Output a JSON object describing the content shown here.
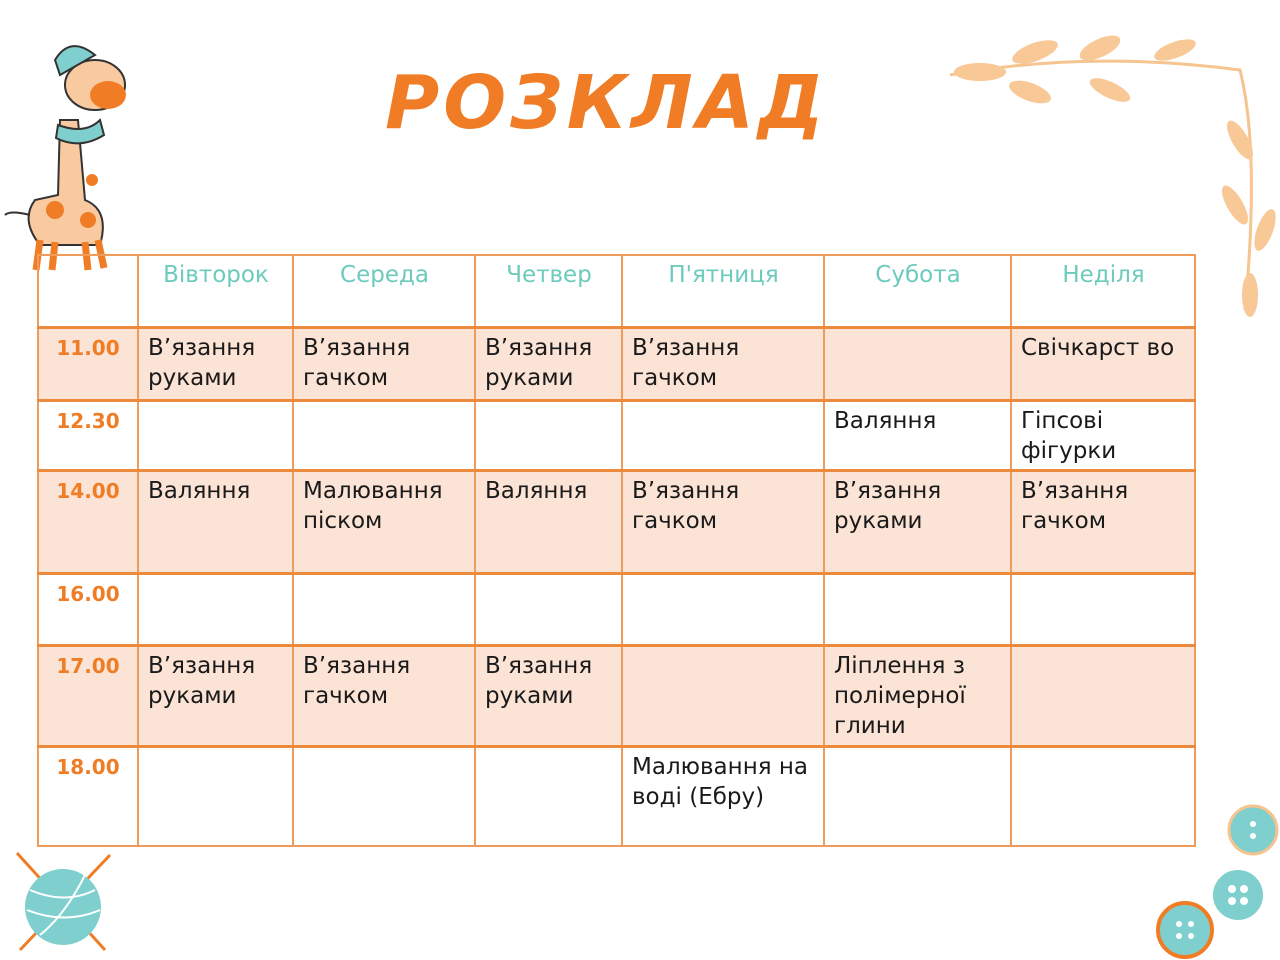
{
  "title": "РОЗКЛАД",
  "colors": {
    "title": "#f07d26",
    "day_header": "#6ccbbd",
    "time": "#ee7d25",
    "row_shade": "#fbe3d5",
    "border": "#ef9b5c",
    "accent_teal": "#7fcfcf"
  },
  "decorations": [
    "giraffe-illustration",
    "leaf-branch-illustration",
    "yarn-ball-icon",
    "button-icons"
  ],
  "schedule": {
    "days": [
      "Вівторок",
      "Середа",
      "Четвер",
      "П'ятниця",
      "Субота",
      "Неділя"
    ],
    "rows": [
      {
        "time": "11.00",
        "cells": [
          "В’язання рукaми",
          "В’язання гачком",
          "В’язання рукaми",
          "В’язання гачком",
          "",
          "Свічкарст во"
        ]
      },
      {
        "time": "12.30",
        "cells": [
          "",
          "",
          "",
          "",
          "Валяння",
          "Гіпсові фігурки"
        ]
      },
      {
        "time": "14.00",
        "cells": [
          "Валяння",
          "Малювання піском",
          "Валяння",
          "В’язання гачком",
          "В’язання рукaми",
          "В’язання гачком"
        ]
      },
      {
        "time": "16.00",
        "cells": [
          "",
          "",
          "",
          "",
          "",
          ""
        ]
      },
      {
        "time": "17.00",
        "cells": [
          "В’язання рукaми",
          "В’язання гачком",
          "В’язання рукaми",
          "",
          "Ліплення з полімерної глини",
          ""
        ]
      },
      {
        "time": "18.00",
        "cells": [
          "",
          "",
          "",
          "Малювання на воді (Ебру)",
          "",
          ""
        ]
      }
    ]
  }
}
